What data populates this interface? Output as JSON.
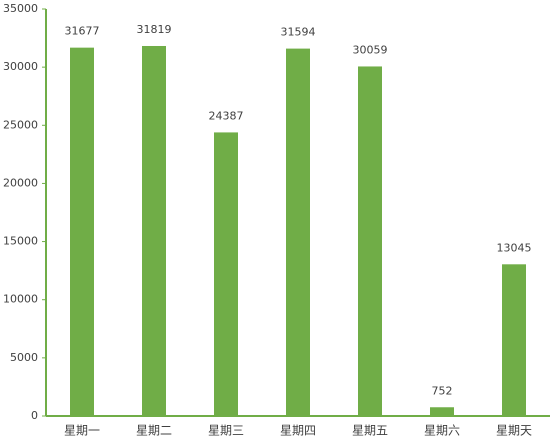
{
  "chart_data": {
    "type": "bar",
    "categories": [
      "星期一",
      "星期二",
      "星期三",
      "星期四",
      "星期五",
      "星期六",
      "星期天"
    ],
    "values": [
      31677,
      31819,
      24387,
      31594,
      30059,
      752,
      13045
    ],
    "color": "#70ad47",
    "axis_color": "#70ad47",
    "ylim": [
      0,
      35000
    ],
    "yticks": [
      0,
      5000,
      10000,
      15000,
      20000,
      25000,
      30000,
      35000
    ],
    "grid": false
  }
}
